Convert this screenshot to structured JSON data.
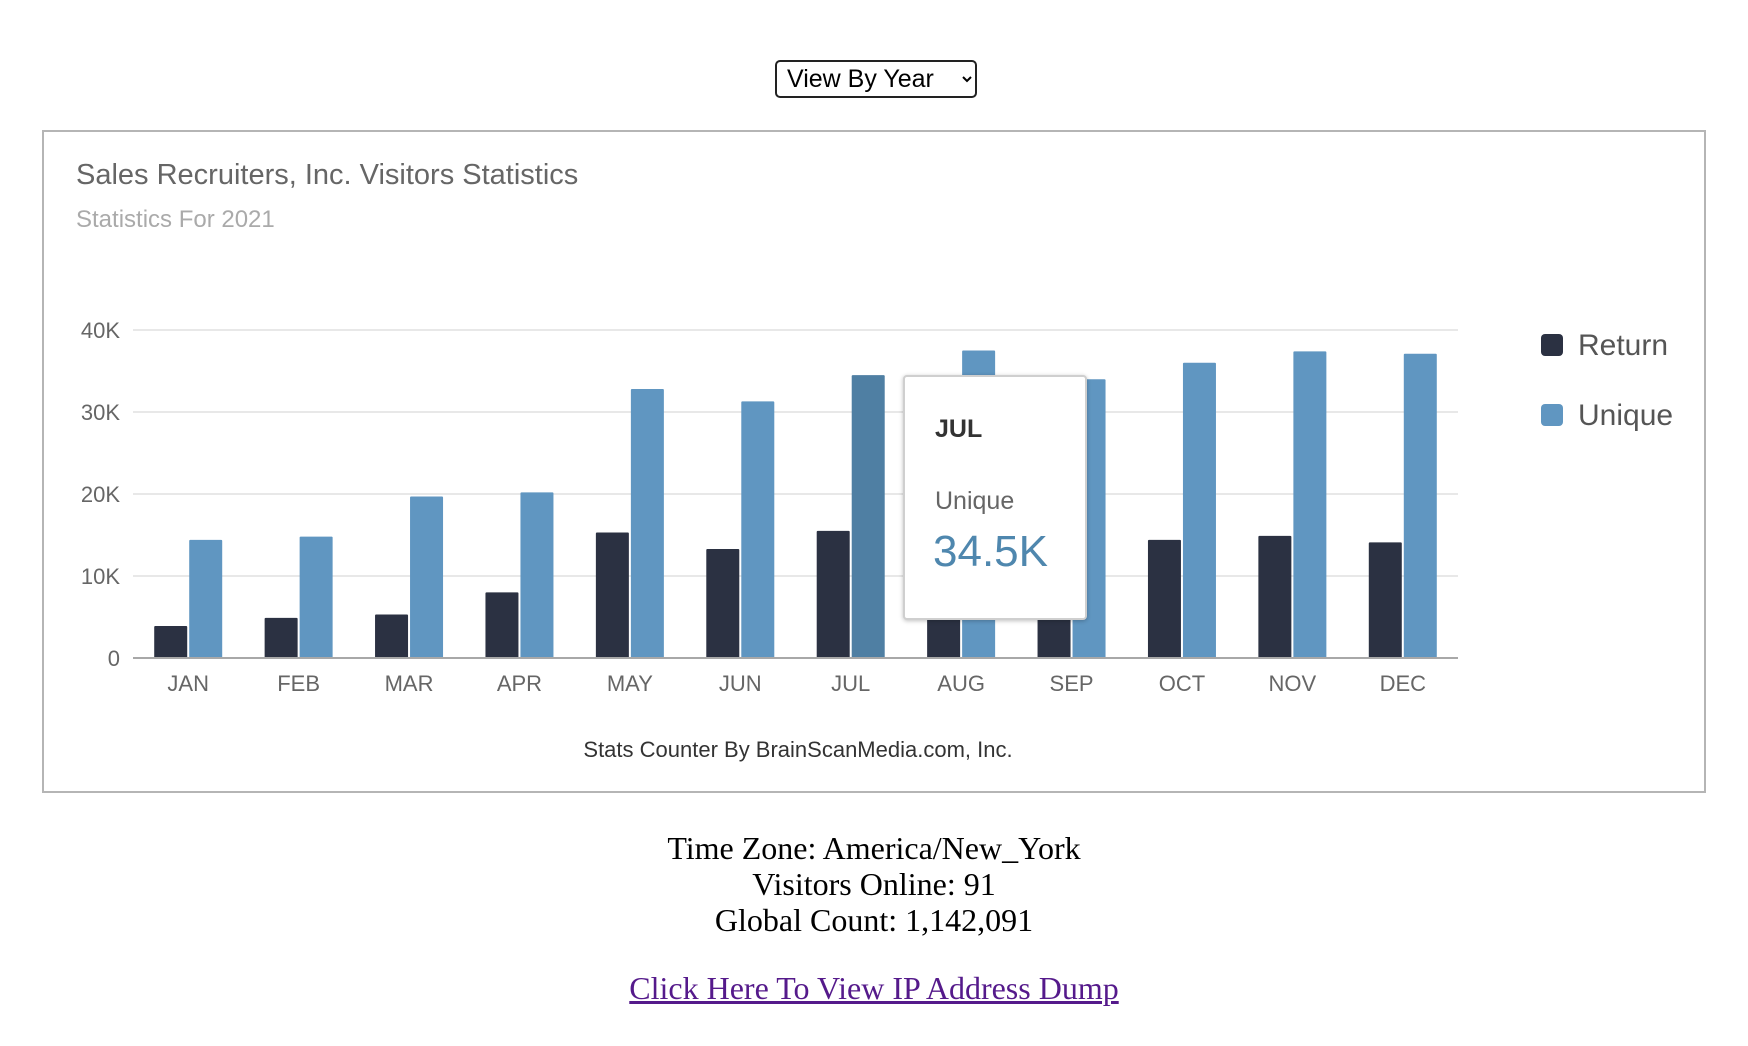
{
  "view_selector": {
    "selected": "View By Year"
  },
  "chart_data": {
    "type": "bar",
    "title": "Sales Recruiters, Inc. Visitors Statistics",
    "subtitle": "Statistics For 2021",
    "categories": [
      "JAN",
      "FEB",
      "MAR",
      "APR",
      "MAY",
      "JUN",
      "JUL",
      "AUG",
      "SEP",
      "OCT",
      "NOV",
      "DEC"
    ],
    "series": [
      {
        "name": "Return",
        "color": "#2b3142",
        "values": [
          3900,
          4900,
          5300,
          8000,
          15300,
          13300,
          15500,
          13800,
          13800,
          14400,
          14900,
          14100
        ]
      },
      {
        "name": "Unique",
        "color": "#6096c1",
        "values": [
          14400,
          14800,
          19700,
          20200,
          32800,
          31300,
          34500,
          37500,
          34000,
          36000,
          37400,
          37100
        ]
      }
    ],
    "ylim": [
      0,
      40000
    ],
    "y_ticks": [
      {
        "value": 0,
        "label": "0"
      },
      {
        "value": 10000,
        "label": "10K"
      },
      {
        "value": 20000,
        "label": "20K"
      },
      {
        "value": 30000,
        "label": "30K"
      },
      {
        "value": 40000,
        "label": "40K"
      }
    ],
    "grid": true,
    "legend_position": "right",
    "credits": "Stats Counter By BrainScanMedia.com, Inc.",
    "highlighted": {
      "category": "JUL",
      "series": "Unique",
      "hover_color": "#4f7fa3"
    },
    "tooltip": {
      "category": "JUL",
      "series": "Unique",
      "value": "34.5K"
    }
  },
  "info": {
    "time_zone": "Time Zone: America/New_York",
    "visitors_online": "Visitors Online: 91",
    "global_count": "Global Count: 1,142,091"
  },
  "link": {
    "label": "Click Here To View IP Address Dump"
  }
}
